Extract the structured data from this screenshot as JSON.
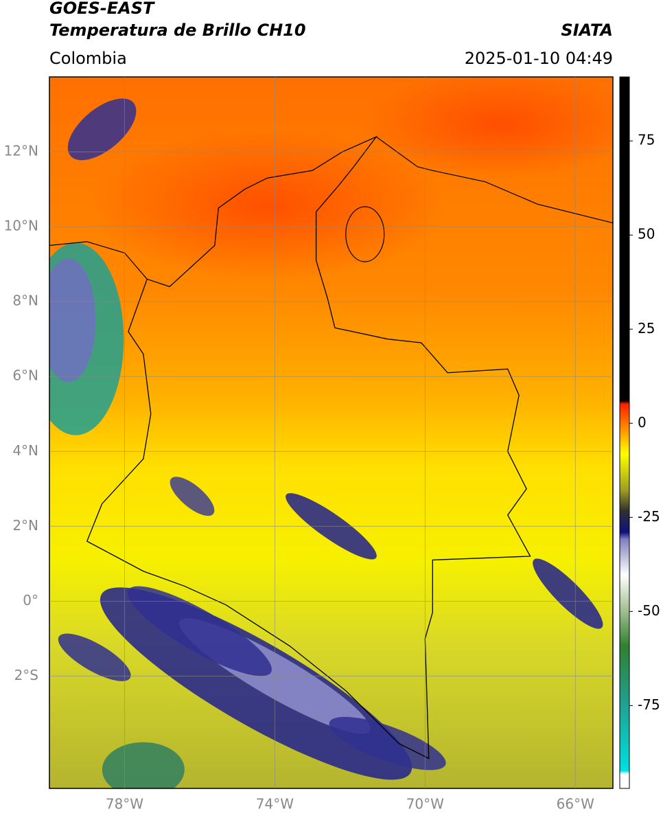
{
  "header": {
    "title": "GOES-EAST",
    "subtitle": "Temperatura de Brillo CH10",
    "source": "SIATA",
    "region": "Colombia",
    "timestamp": "2025-01-10 04:49"
  },
  "map": {
    "xlim": [
      -80,
      -65
    ],
    "ylim": [
      -5,
      14
    ],
    "xticks": [
      {
        "value": -78,
        "label": "78°W"
      },
      {
        "value": -74,
        "label": "74°W"
      },
      {
        "value": -70,
        "label": "70°W"
      },
      {
        "value": -66,
        "label": "66°W"
      }
    ],
    "yticks": [
      {
        "value": -2,
        "label": "2°S"
      },
      {
        "value": 0,
        "label": "0°"
      },
      {
        "value": 2,
        "label": "2°N"
      },
      {
        "value": 4,
        "label": "4°N"
      },
      {
        "value": 6,
        "label": "6°N"
      },
      {
        "value": 8,
        "label": "8°N"
      },
      {
        "value": 10,
        "label": "10°N"
      },
      {
        "value": 12,
        "label": "12°N"
      }
    ],
    "grid": true
  },
  "colorbar": {
    "lim": [
      -97,
      92
    ],
    "ticks": [
      -75,
      -50,
      -25,
      0,
      25,
      50,
      75
    ]
  }
}
